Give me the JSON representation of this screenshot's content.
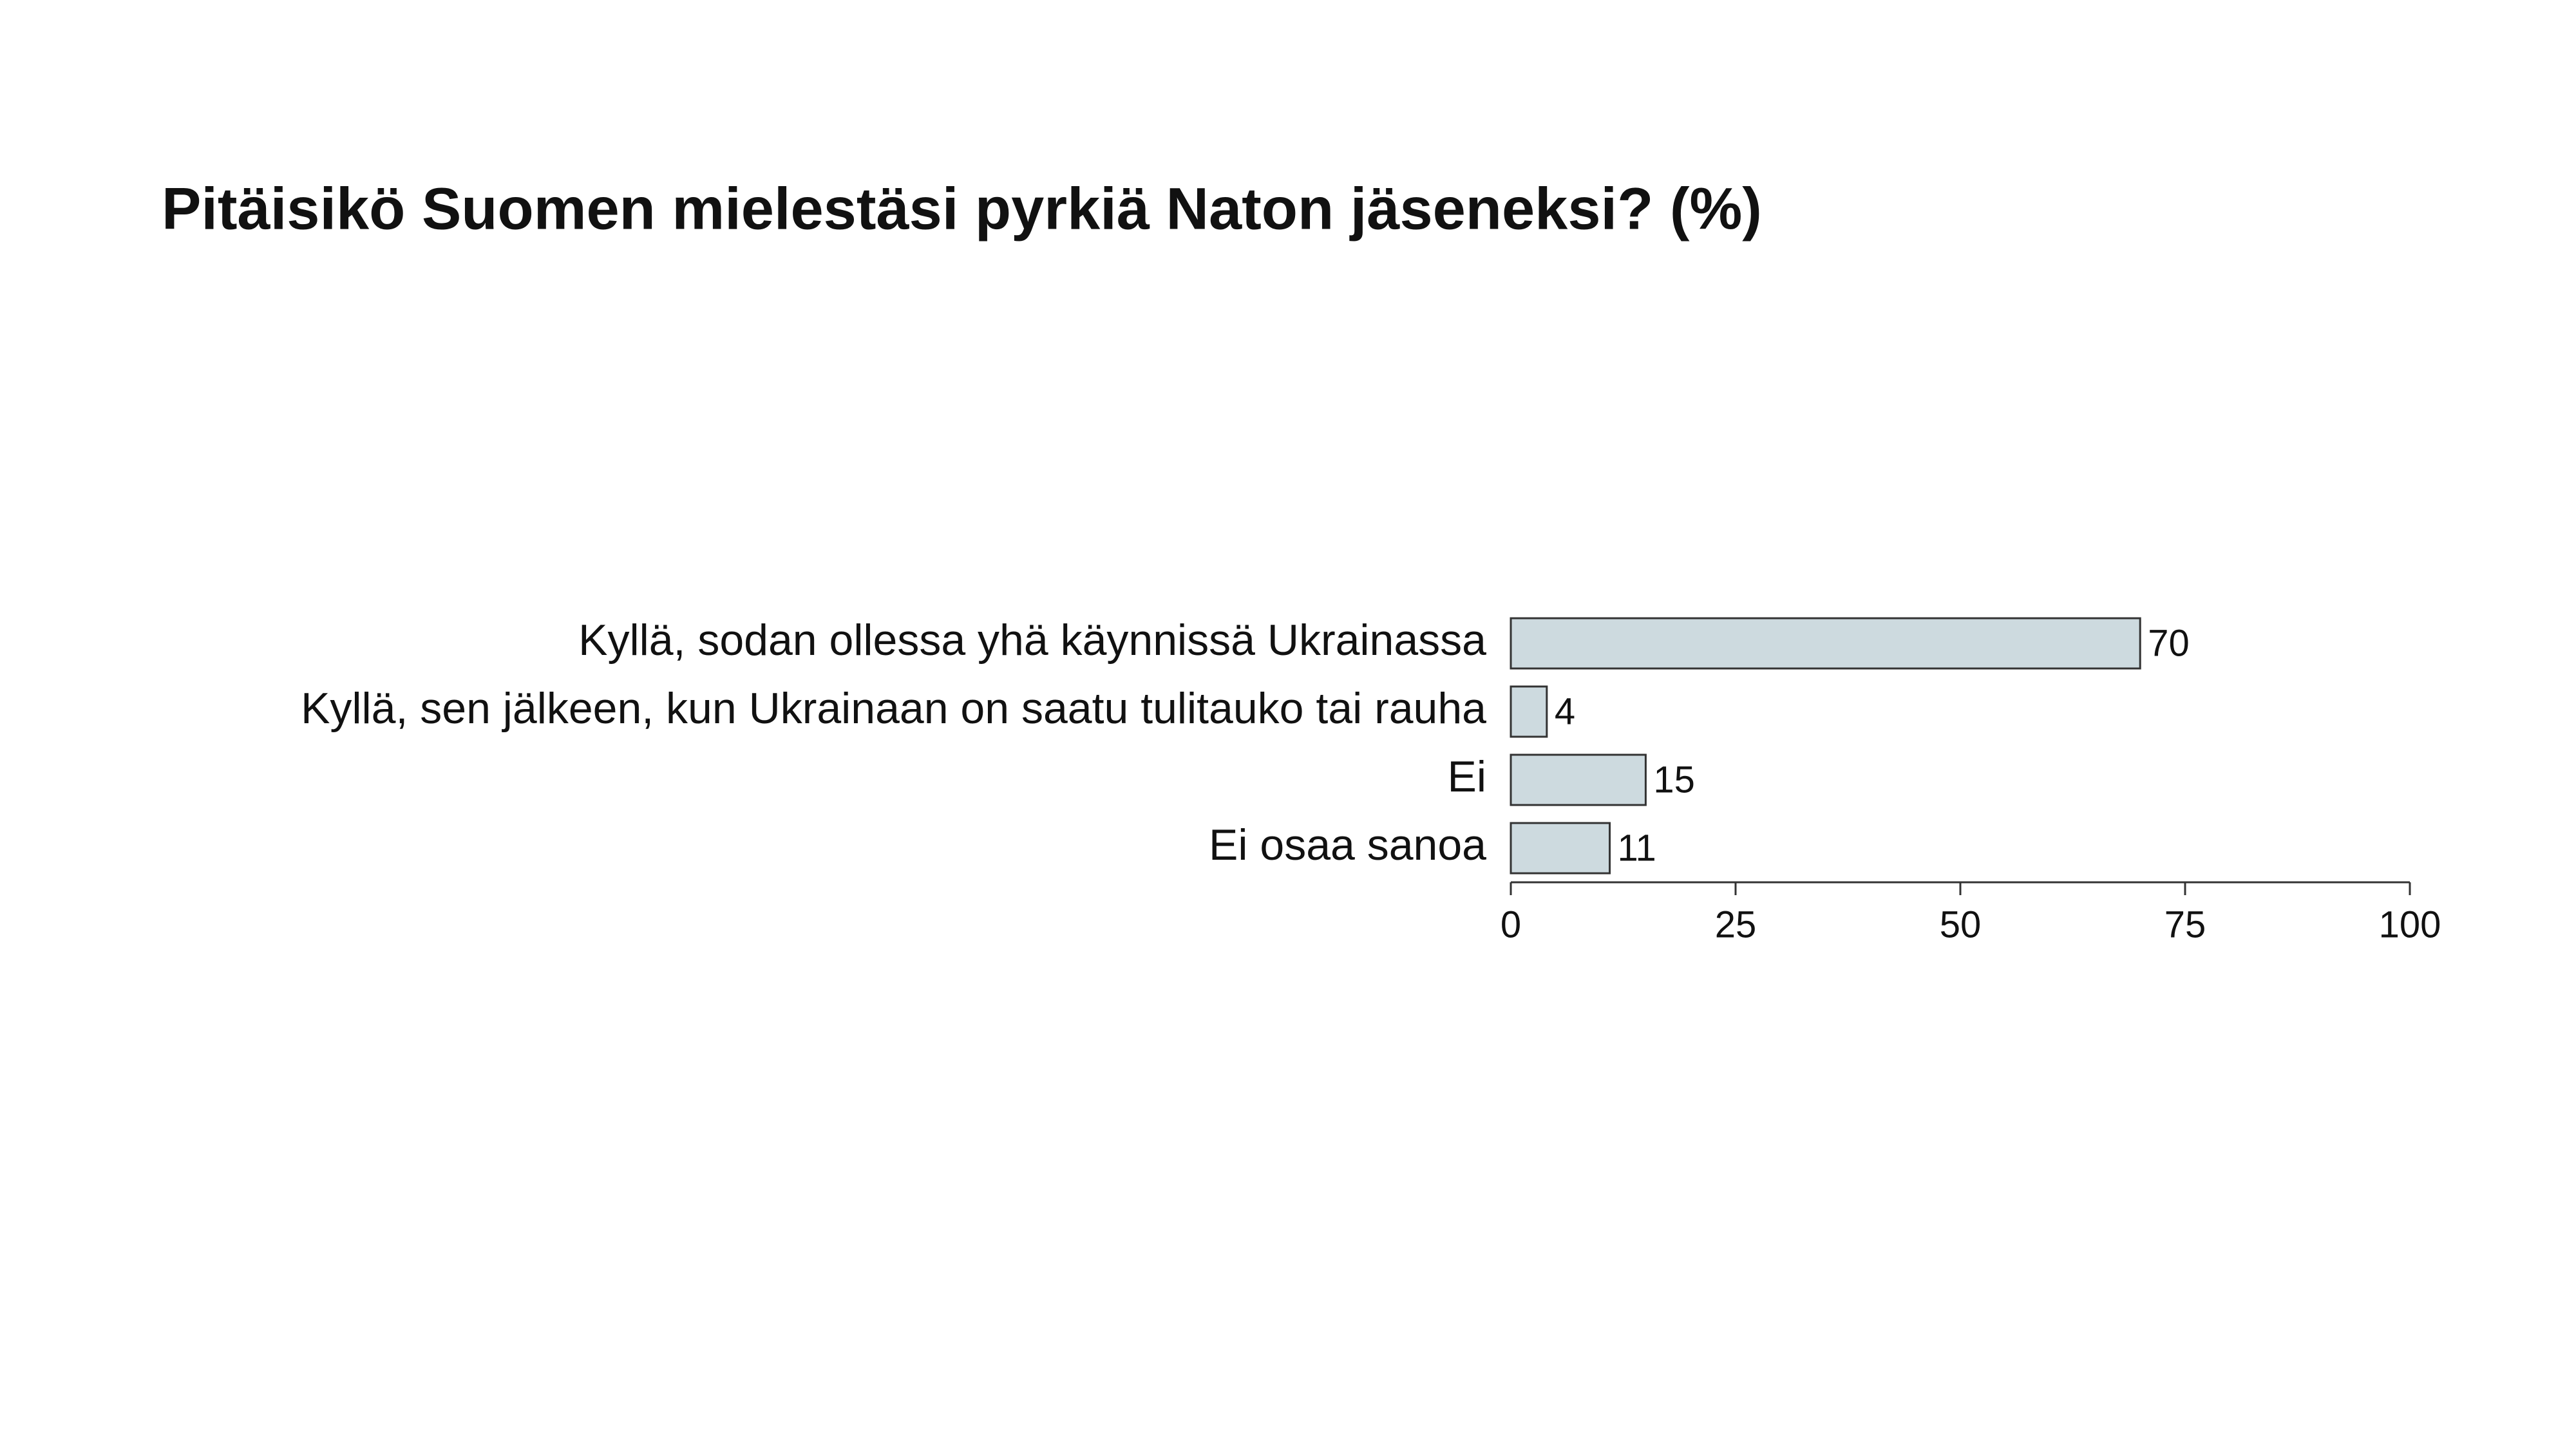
{
  "chart_data": {
    "type": "bar",
    "orientation": "horizontal",
    "title": "Pitäisikö Suomen mielestäsi pyrkiä Naton jäseneksi? (%)",
    "categories": [
      "Kyllä, sodan ollessa yhä käynnissä Ukrainassa",
      "Kyllä, sen jälkeen, kun Ukrainaan on saatu tulitauko tai rauha",
      "Ei",
      "Ei osaa sanoa"
    ],
    "values": [
      70,
      4,
      15,
      11
    ],
    "color": "#cddadf",
    "xlim": [
      0,
      100
    ],
    "xticks": [
      0,
      25,
      50,
      75,
      100
    ],
    "grid": false
  }
}
